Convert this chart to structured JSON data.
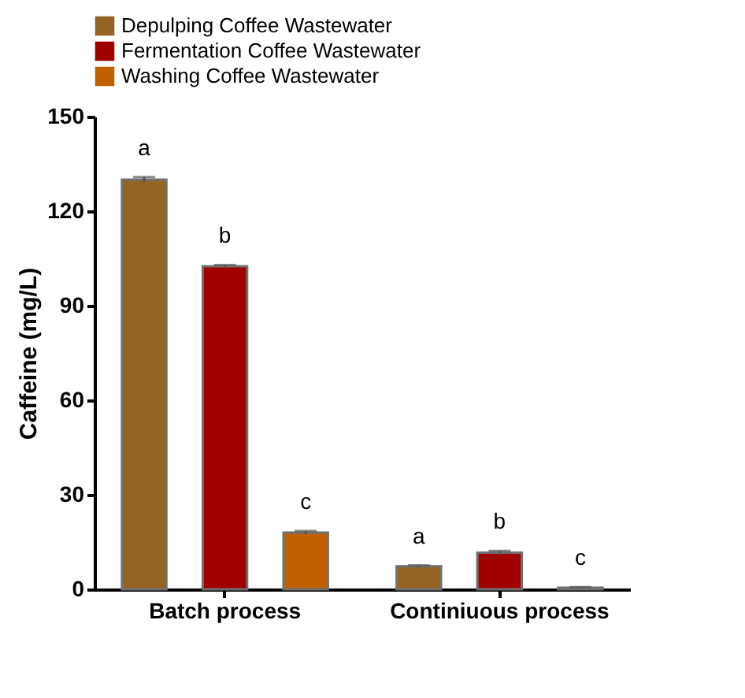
{
  "chart_data": {
    "type": "bar",
    "ylabel": "Caffeine (mg/L)",
    "categories": [
      "Batch process",
      "Continiuous process"
    ],
    "series": [
      {
        "name": "Depulping Coffee Wastewater",
        "color": "#946321",
        "values": [
          130,
          7.3
        ],
        "errors": [
          0.8,
          0.3
        ],
        "value_labels": [
          "a",
          "a"
        ]
      },
      {
        "name": "Fermentation Coffee Wastewater",
        "color": "#a00000",
        "values": [
          102.5,
          11.6
        ],
        "errors": [
          0.4,
          0.6
        ],
        "value_labels": [
          "b",
          "b"
        ]
      },
      {
        "name": "Washing Coffee Wastewater",
        "color": "#c06000",
        "values": [
          18,
          0.5
        ],
        "errors": [
          0.5,
          0.2
        ],
        "value_labels": [
          "c",
          "c"
        ]
      }
    ],
    "ylim": [
      0,
      150
    ],
    "yticks": [
      0,
      30,
      60,
      90,
      120,
      150
    ],
    "grid": false,
    "legend": "top"
  }
}
